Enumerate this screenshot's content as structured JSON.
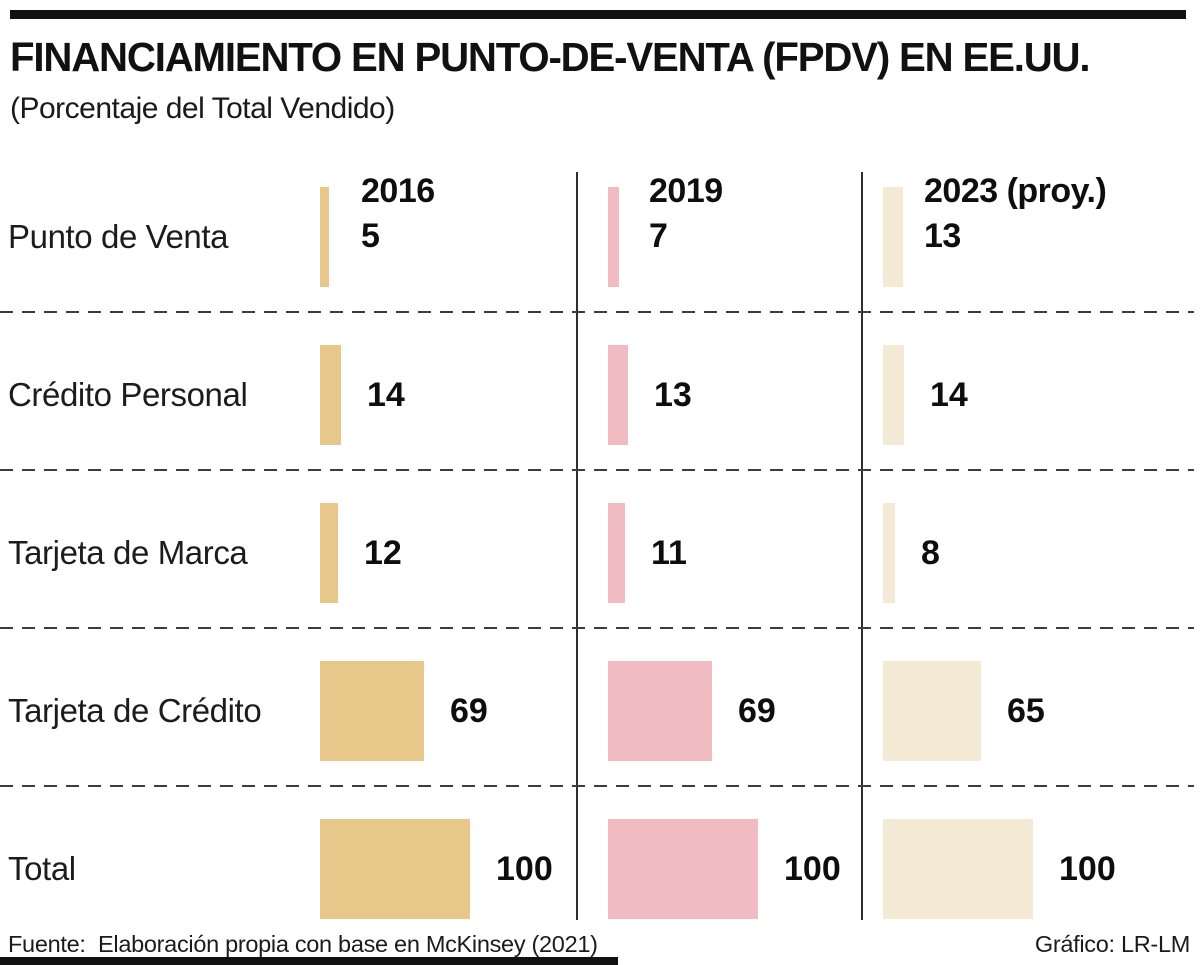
{
  "header": {
    "title": "FINANCIAMIENTO EN PUNTO-DE-VENTA (FPDV) EN EE.UU.",
    "subtitle": "(Porcentaje del Total Vendido)"
  },
  "footer": {
    "source": "Fuente:  Elaboración propia con base en McKinsey (2021)",
    "credit": "Gráfico: LR-LM"
  },
  "chart_data": {
    "type": "bar",
    "title": "FINANCIAMIENTO EN PUNTO-DE-VENTA (FPDV) EN EE.UU.",
    "subtitle": "(Porcentaje del Total Vendido)",
    "unit": "percent of total sold",
    "categories": [
      "Punto de Venta",
      "Crédito Personal",
      "Tarjeta de Marca",
      "Tarjeta de Crédito",
      "Total"
    ],
    "series": [
      {
        "name": "2016",
        "color": "#e8c88a",
        "values": [
          5,
          14,
          12,
          69,
          100
        ]
      },
      {
        "name": "2019",
        "color": "#f0bbc1",
        "values": [
          7,
          13,
          11,
          69,
          100
        ]
      },
      {
        "name": "2023 (proy.)",
        "color": "#f4e9d4",
        "values": [
          13,
          14,
          8,
          65,
          100
        ]
      }
    ],
    "value_range": [
      0,
      100
    ],
    "legend_position": "column headers",
    "grid": "dashed row separators, solid column dividers",
    "colors": {
      "accent_2016": "#e8c88a",
      "accent_2019": "#f0bbc1",
      "accent_2023": "#f4e9d4",
      "rule": "#111111"
    }
  }
}
